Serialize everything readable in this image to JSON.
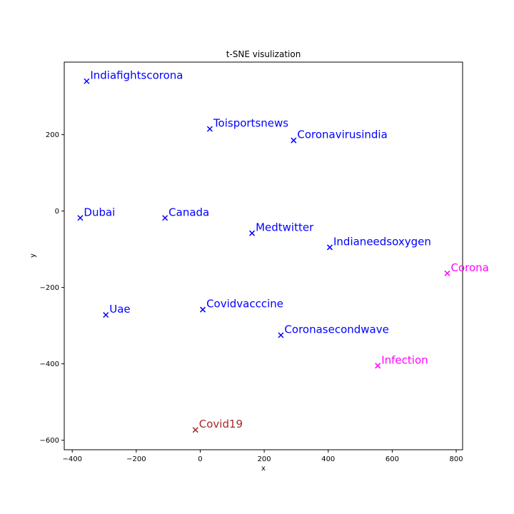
{
  "chart_data": {
    "type": "scatter",
    "title": "t-SNE visulization",
    "xlabel": "x",
    "ylabel": "y",
    "xlim": [
      -425,
      820
    ],
    "ylim": [
      -625,
      390
    ],
    "xticks": [
      -400,
      -200,
      0,
      200,
      400,
      600,
      800
    ],
    "yticks": [
      -600,
      -400,
      -200,
      0,
      200
    ],
    "grid": false,
    "marker": "x",
    "points": [
      {
        "label": "Indiafightscorona",
        "x": -355,
        "y": 340,
        "color": "#0000ff"
      },
      {
        "label": "Toisportsnews",
        "x": 30,
        "y": 215,
        "color": "#0000ff"
      },
      {
        "label": "Coronavirusindia",
        "x": 292,
        "y": 185,
        "color": "#0000ff"
      },
      {
        "label": "Dubai",
        "x": -375,
        "y": -18,
        "color": "#0000ff"
      },
      {
        "label": "Canada",
        "x": -110,
        "y": -18,
        "color": "#0000ff"
      },
      {
        "label": "Medtwitter",
        "x": 162,
        "y": -58,
        "color": "#0000ff"
      },
      {
        "label": "Indianeedsoxygen",
        "x": 405,
        "y": -95,
        "color": "#0000ff"
      },
      {
        "label": "Corona",
        "x": 772,
        "y": -163,
        "color": "#ff00ff"
      },
      {
        "label": "Uae",
        "x": -295,
        "y": -272,
        "color": "#0000ff"
      },
      {
        "label": "Covidvacccine",
        "x": 8,
        "y": -258,
        "color": "#0000ff"
      },
      {
        "label": "Coronasecondwave",
        "x": 252,
        "y": -325,
        "color": "#0000ff"
      },
      {
        "label": "Infection",
        "x": 555,
        "y": -405,
        "color": "#ff00ff"
      },
      {
        "label": "Covid19",
        "x": -15,
        "y": -573,
        "color": "#a52a2a"
      }
    ]
  }
}
